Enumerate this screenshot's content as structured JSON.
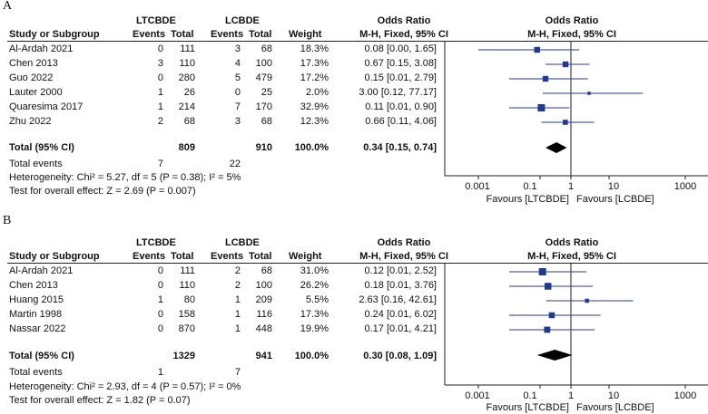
{
  "col_headers": {
    "group1": "LTCBDE",
    "group2": "LCBDE",
    "study": "Study or Subgroup",
    "events": "Events",
    "total": "Total",
    "weight": "Weight",
    "odds_ratio": "Odds Ratio",
    "method": "M-H, Fixed, 95% CI"
  },
  "axis": {
    "ticks": [
      "0.001",
      "0.1",
      "1",
      "10",
      "1000"
    ],
    "tick_values": [
      0.001,
      0.1,
      1,
      10,
      1000
    ],
    "favours_left": "Favours [LTCBDE]",
    "favours_right": "Favours [LCBDE]"
  },
  "panelA": {
    "label": "A",
    "rows": [
      {
        "study": "Al-Ardah 2021",
        "e1": "0",
        "t1": "111",
        "e2": "3",
        "t2": "68",
        "w": "18.3%",
        "ci": "0.08 [0.00, 1.65]"
      },
      {
        "study": "Chen 2013",
        "e1": "3",
        "t1": "110",
        "e2": "4",
        "t2": "100",
        "w": "17.3%",
        "ci": "0.67 [0.15, 3.08]"
      },
      {
        "study": "Guo 2022",
        "e1": "0",
        "t1": "280",
        "e2": "5",
        "t2": "479",
        "w": "17.2%",
        "ci": "0.15 [0.01, 2.79]"
      },
      {
        "study": "Lauter 2000",
        "e1": "1",
        "t1": "26",
        "e2": "0",
        "t2": "25",
        "w": "2.0%",
        "ci": "3.00 [0.12, 77.17]"
      },
      {
        "study": "Quaresima 2017",
        "e1": "1",
        "t1": "214",
        "e2": "7",
        "t2": "170",
        "w": "32.9%",
        "ci": "0.11 [0.01, 0.90]"
      },
      {
        "study": "Zhu 2022",
        "e1": "2",
        "t1": "68",
        "e2": "3",
        "t2": "68",
        "w": "12.3%",
        "ci": "0.66 [0.11, 4.06]"
      }
    ],
    "total": {
      "label": "Total (95% CI)",
      "t1": "809",
      "t2": "910",
      "w": "100.0%",
      "ci": "0.34 [0.15, 0.74]"
    },
    "events_label": "Total events",
    "events1": "7",
    "events2": "22",
    "heterogeneity": "Heterogeneity: Chi² = 5.27, df = 5 (P = 0.38); I² = 5%",
    "overall": "Test for overall effect: Z = 2.69 (P = 0.007)"
  },
  "panelB": {
    "label": "B",
    "rows": [
      {
        "study": "Al-Ardah 2021",
        "e1": "0",
        "t1": "111",
        "e2": "2",
        "t2": "68",
        "w": "31.0%",
        "ci": "0.12 [0.01, 2.52]"
      },
      {
        "study": "Chen 2013",
        "e1": "0",
        "t1": "110",
        "e2": "2",
        "t2": "100",
        "w": "26.2%",
        "ci": "0.18 [0.01, 3.76]"
      },
      {
        "study": "Huang 2015",
        "e1": "1",
        "t1": "80",
        "e2": "1",
        "t2": "209",
        "w": "5.5%",
        "ci": "2.63 [0.16, 42.61]"
      },
      {
        "study": "Martin 1998",
        "e1": "0",
        "t1": "158",
        "e2": "1",
        "t2": "116",
        "w": "17.3%",
        "ci": "0.24 [0.01, 6.02]"
      },
      {
        "study": "Nassar 2022",
        "e1": "0",
        "t1": "870",
        "e2": "1",
        "t2": "448",
        "w": "19.9%",
        "ci": "0.17 [0.01, 4.21]"
      }
    ],
    "total": {
      "label": "Total (95% CI)",
      "t1": "1329",
      "t2": "941",
      "w": "100.0%",
      "ci": "0.30 [0.08, 1.09]"
    },
    "events_label": "Total events",
    "events1": "1",
    "events2": "7",
    "heterogeneity": "Heterogeneity: Chi² = 2.93, df = 4 (P = 0.57); I² = 0%",
    "overall": "Test for overall effect: Z = 1.82 (P = 0.07)"
  },
  "chart_data": [
    {
      "type": "scatter",
      "title": "A",
      "xlabel": "Odds Ratio (M-H, Fixed, 95% CI)",
      "xscale": "log",
      "xlim": [
        0.001,
        1000
      ],
      "series": [
        {
          "name": "Al-Ardah 2021",
          "or": 0.08,
          "lo": 0.001,
          "hi": 1.65,
          "weight": 18.3
        },
        {
          "name": "Chen 2013",
          "or": 0.67,
          "lo": 0.15,
          "hi": 3.08,
          "weight": 17.3
        },
        {
          "name": "Guo 2022",
          "or": 0.15,
          "lo": 0.01,
          "hi": 2.79,
          "weight": 17.2
        },
        {
          "name": "Lauter 2000",
          "or": 3.0,
          "lo": 0.12,
          "hi": 77.17,
          "weight": 2.0
        },
        {
          "name": "Quaresima 2017",
          "or": 0.11,
          "lo": 0.01,
          "hi": 0.9,
          "weight": 32.9
        },
        {
          "name": "Zhu 2022",
          "or": 0.66,
          "lo": 0.11,
          "hi": 4.06,
          "weight": 12.3
        }
      ],
      "pooled": {
        "or": 0.34,
        "lo": 0.15,
        "hi": 0.74
      }
    },
    {
      "type": "scatter",
      "title": "B",
      "xlabel": "Odds Ratio (M-H, Fixed, 95% CI)",
      "xscale": "log",
      "xlim": [
        0.001,
        1000
      ],
      "series": [
        {
          "name": "Al-Ardah 2021",
          "or": 0.12,
          "lo": 0.01,
          "hi": 2.52,
          "weight": 31.0
        },
        {
          "name": "Chen 2013",
          "or": 0.18,
          "lo": 0.01,
          "hi": 3.76,
          "weight": 26.2
        },
        {
          "name": "Huang 2015",
          "or": 2.63,
          "lo": 0.16,
          "hi": 42.61,
          "weight": 5.5
        },
        {
          "name": "Martin 1998",
          "or": 0.24,
          "lo": 0.01,
          "hi": 6.02,
          "weight": 17.3
        },
        {
          "name": "Nassar 2022",
          "or": 0.17,
          "lo": 0.01,
          "hi": 4.21,
          "weight": 19.9
        }
      ],
      "pooled": {
        "or": 0.3,
        "lo": 0.08,
        "hi": 1.09
      }
    }
  ]
}
